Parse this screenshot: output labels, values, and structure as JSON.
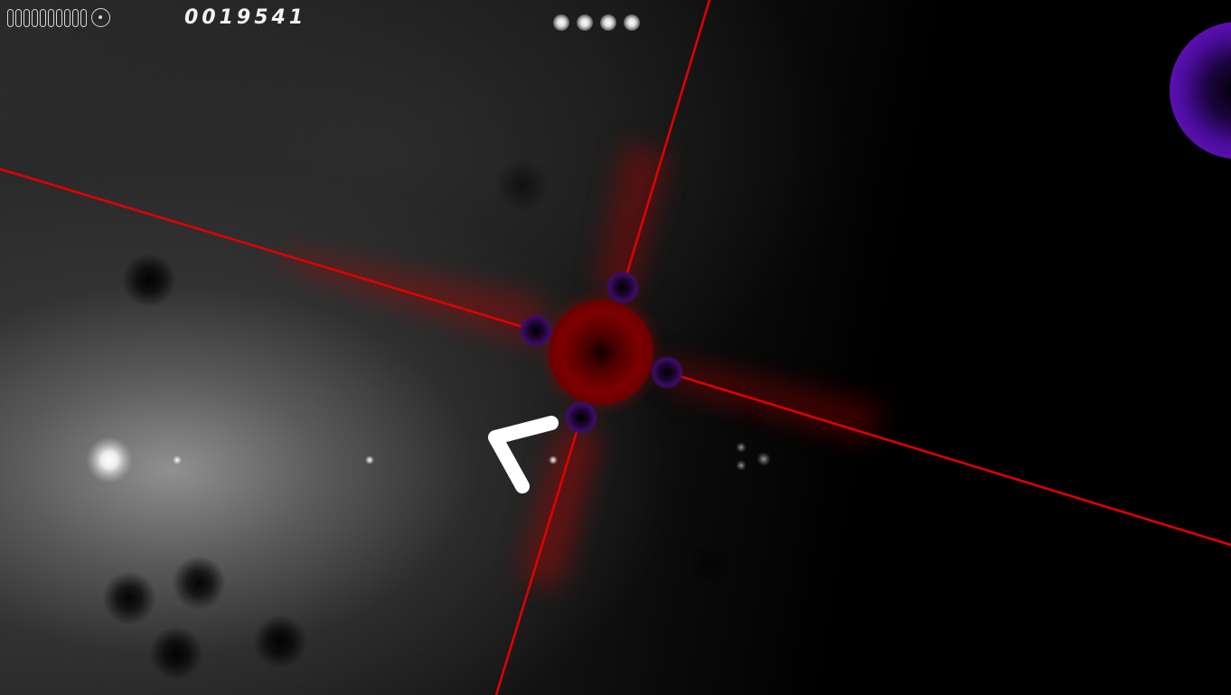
{
  "hud": {
    "score": "0019541",
    "lives_remaining": 10,
    "lives_icon": "capsule-outline-icon",
    "bomb_icon": "ring-bomb-icon",
    "multiplier_dots": 4
  },
  "colors": {
    "laser": "#e00000",
    "boss_core": "#7a0000",
    "laser_node": "#3a0a5a",
    "orb": "#5a10b0",
    "player": "#ffffff"
  }
}
